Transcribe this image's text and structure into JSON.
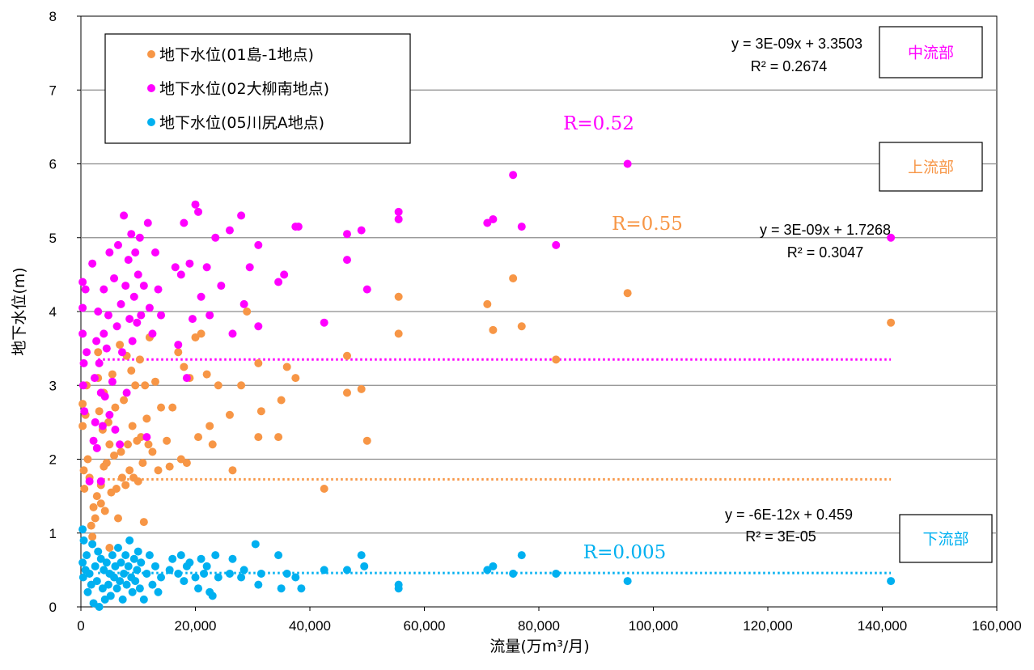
{
  "chart_data": {
    "type": "scatter",
    "xlabel": "流量(万m³/月)",
    "ylabel": "地下水位(m)",
    "xlim": [
      0,
      160000
    ],
    "ylim": [
      0,
      8
    ],
    "x_ticks": [
      "0",
      "20,000",
      "40,000",
      "60,000",
      "80,000",
      "100,000",
      "120,000",
      "140,000",
      "160,000"
    ],
    "y_ticks": [
      "0",
      "1",
      "2",
      "3",
      "4",
      "5",
      "6",
      "7",
      "8"
    ],
    "grid": "horizontal",
    "legend_position": "top-left",
    "series": [
      {
        "name": "地下水位(01島-1地点)",
        "color": "#F79646",
        "trendline": {
          "slope": 3e-09,
          "intercept": 1.7268,
          "equation": "y = 3E-09x + 1.7268",
          "r2": "R² = 0.3047",
          "r_label": "R=0.55",
          "region": "上流部"
        },
        "points": [
          [
            300,
            2.75
          ],
          [
            300,
            2.45
          ],
          [
            500,
            1.85
          ],
          [
            600,
            1.6
          ],
          [
            800,
            2.6
          ],
          [
            1000,
            3.0
          ],
          [
            1200,
            2.0
          ],
          [
            1500,
            1.75
          ],
          [
            1800,
            1.1
          ],
          [
            2000,
            0.95
          ],
          [
            2200,
            1.35
          ],
          [
            2500,
            1.2
          ],
          [
            2800,
            1.5
          ],
          [
            3000,
            3.45
          ],
          [
            3000,
            3.1
          ],
          [
            3200,
            2.65
          ],
          [
            3500,
            1.4
          ],
          [
            3500,
            1.65
          ],
          [
            3800,
            2.4
          ],
          [
            4000,
            2.9
          ],
          [
            4000,
            1.9
          ],
          [
            4200,
            1.3
          ],
          [
            4500,
            1.95
          ],
          [
            4800,
            2.5
          ],
          [
            5000,
            2.2
          ],
          [
            5000,
            0.8
          ],
          [
            5300,
            1.55
          ],
          [
            5500,
            3.15
          ],
          [
            5800,
            2.05
          ],
          [
            6000,
            2.7
          ],
          [
            6200,
            1.6
          ],
          [
            6500,
            1.2
          ],
          [
            6800,
            3.55
          ],
          [
            7000,
            2.1
          ],
          [
            7200,
            1.75
          ],
          [
            7500,
            2.8
          ],
          [
            7800,
            1.65
          ],
          [
            8000,
            3.4
          ],
          [
            8200,
            2.2
          ],
          [
            8500,
            1.85
          ],
          [
            8800,
            3.2
          ],
          [
            9000,
            2.45
          ],
          [
            9200,
            1.75
          ],
          [
            9500,
            3.0
          ],
          [
            9800,
            2.25
          ],
          [
            10000,
            1.7
          ],
          [
            10300,
            3.35
          ],
          [
            10500,
            2.3
          ],
          [
            10800,
            1.95
          ],
          [
            11000,
            1.15
          ],
          [
            11200,
            3.0
          ],
          [
            11500,
            2.55
          ],
          [
            11800,
            2.2
          ],
          [
            12000,
            3.65
          ],
          [
            12500,
            2.1
          ],
          [
            13000,
            3.05
          ],
          [
            13500,
            1.85
          ],
          [
            14000,
            2.7
          ],
          [
            15000,
            2.25
          ],
          [
            15500,
            1.9
          ],
          [
            16000,
            2.7
          ],
          [
            17000,
            3.45
          ],
          [
            17500,
            2.0
          ],
          [
            18000,
            3.25
          ],
          [
            18500,
            1.95
          ],
          [
            19000,
            3.1
          ],
          [
            20000,
            3.65
          ],
          [
            20500,
            2.3
          ],
          [
            21000,
            3.7
          ],
          [
            22000,
            3.15
          ],
          [
            22500,
            2.45
          ],
          [
            23000,
            2.2
          ],
          [
            24000,
            3.0
          ],
          [
            26000,
            2.6
          ],
          [
            26500,
            1.85
          ],
          [
            28000,
            3.0
          ],
          [
            29000,
            4.0
          ],
          [
            31000,
            2.3
          ],
          [
            31000,
            3.3
          ],
          [
            31500,
            2.65
          ],
          [
            34500,
            2.3
          ],
          [
            35000,
            2.8
          ],
          [
            36000,
            3.25
          ],
          [
            37500,
            3.1
          ],
          [
            42500,
            1.6
          ],
          [
            46500,
            2.9
          ],
          [
            46500,
            3.4
          ],
          [
            49000,
            2.95
          ],
          [
            50000,
            2.25
          ],
          [
            55500,
            4.2
          ],
          [
            55500,
            3.7
          ],
          [
            71000,
            4.1
          ],
          [
            72000,
            3.75
          ],
          [
            75500,
            4.45
          ],
          [
            77000,
            3.8
          ],
          [
            83000,
            3.35
          ],
          [
            95500,
            4.25
          ],
          [
            141500,
            3.85
          ]
        ]
      },
      {
        "name": "地下水位(02大柳南地点)",
        "color": "#FF00FF",
        "trendline": {
          "slope": 3e-09,
          "intercept": 3.3503,
          "equation": "y = 3E-09x + 3.3503",
          "r2": "R² = 0.2674",
          "r_label": "R=0.52",
          "region": "中流部"
        },
        "points": [
          [
            300,
            4.4
          ],
          [
            300,
            4.05
          ],
          [
            300,
            3.7
          ],
          [
            400,
            3.0
          ],
          [
            500,
            3.3
          ],
          [
            600,
            2.65
          ],
          [
            800,
            4.3
          ],
          [
            1000,
            3.45
          ],
          [
            1500,
            1.7
          ],
          [
            2000,
            4.65
          ],
          [
            2200,
            2.25
          ],
          [
            2400,
            3.1
          ],
          [
            2500,
            2.5
          ],
          [
            2700,
            3.6
          ],
          [
            2800,
            2.15
          ],
          [
            3000,
            4.0
          ],
          [
            3200,
            3.3
          ],
          [
            3500,
            2.9
          ],
          [
            3500,
            1.7
          ],
          [
            3800,
            2.45
          ],
          [
            4000,
            3.7
          ],
          [
            4000,
            4.3
          ],
          [
            4200,
            2.85
          ],
          [
            4500,
            3.5
          ],
          [
            4800,
            3.95
          ],
          [
            5000,
            4.8
          ],
          [
            5000,
            2.6
          ],
          [
            5500,
            3.05
          ],
          [
            5800,
            4.45
          ],
          [
            6000,
            2.4
          ],
          [
            6300,
            3.8
          ],
          [
            6500,
            4.9
          ],
          [
            6800,
            2.2
          ],
          [
            7000,
            4.1
          ],
          [
            7200,
            3.45
          ],
          [
            7500,
            5.3
          ],
          [
            7800,
            4.35
          ],
          [
            8000,
            2.9
          ],
          [
            8300,
            4.7
          ],
          [
            8500,
            3.9
          ],
          [
            8800,
            5.05
          ],
          [
            9000,
            3.6
          ],
          [
            9300,
            4.2
          ],
          [
            9500,
            4.8
          ],
          [
            9800,
            3.85
          ],
          [
            10000,
            4.5
          ],
          [
            10300,
            5.0
          ],
          [
            10500,
            3.95
          ],
          [
            11000,
            4.35
          ],
          [
            11500,
            2.3
          ],
          [
            11700,
            5.2
          ],
          [
            12000,
            4.05
          ],
          [
            12500,
            3.7
          ],
          [
            13000,
            4.8
          ],
          [
            13500,
            4.3
          ],
          [
            14000,
            3.95
          ],
          [
            16500,
            4.6
          ],
          [
            17000,
            3.55
          ],
          [
            17500,
            4.5
          ],
          [
            18000,
            5.2
          ],
          [
            18500,
            3.1
          ],
          [
            19000,
            4.65
          ],
          [
            19500,
            3.9
          ],
          [
            20000,
            5.45
          ],
          [
            20500,
            5.35
          ],
          [
            21000,
            4.2
          ],
          [
            22000,
            4.6
          ],
          [
            22500,
            3.95
          ],
          [
            23500,
            5.0
          ],
          [
            24500,
            4.35
          ],
          [
            26000,
            5.1
          ],
          [
            26500,
            3.7
          ],
          [
            28000,
            5.3
          ],
          [
            28500,
            4.1
          ],
          [
            29500,
            4.6
          ],
          [
            31000,
            4.9
          ],
          [
            31000,
            3.8
          ],
          [
            34500,
            4.4
          ],
          [
            35500,
            4.5
          ],
          [
            37500,
            5.15
          ],
          [
            38000,
            5.15
          ],
          [
            42500,
            3.85
          ],
          [
            46500,
            5.05
          ],
          [
            46500,
            4.7
          ],
          [
            49000,
            5.1
          ],
          [
            50000,
            4.3
          ],
          [
            55500,
            5.35
          ],
          [
            55500,
            5.25
          ],
          [
            71000,
            5.2
          ],
          [
            72000,
            5.25
          ],
          [
            75500,
            5.85
          ],
          [
            77000,
            5.15
          ],
          [
            83000,
            4.9
          ],
          [
            95500,
            6.0
          ],
          [
            141500,
            5.0
          ]
        ]
      },
      {
        "name": "地下水位(05川尻A地点)",
        "color": "#00B0F0",
        "trendline": {
          "slope": -6e-12,
          "intercept": 0.459,
          "equation": "y = -6E-12x + 0.459",
          "r2": "R² = 3E-05",
          "r_label": "R=0.005",
          "region": "下流部"
        },
        "points": [
          [
            300,
            1.05
          ],
          [
            300,
            0.6
          ],
          [
            400,
            0.4
          ],
          [
            500,
            0.9
          ],
          [
            800,
            0.5
          ],
          [
            1000,
            0.7
          ],
          [
            1200,
            0.2
          ],
          [
            1500,
            0.45
          ],
          [
            1800,
            0.3
          ],
          [
            2000,
            0.85
          ],
          [
            2200,
            0.05
          ],
          [
            2500,
            0.55
          ],
          [
            2800,
            0.35
          ],
          [
            3000,
            0.75
          ],
          [
            3200,
            0.0
          ],
          [
            3500,
            0.65
          ],
          [
            3800,
            0.25
          ],
          [
            4000,
            0.5
          ],
          [
            4200,
            0.1
          ],
          [
            4500,
            0.6
          ],
          [
            4800,
            0.3
          ],
          [
            5000,
            0.45
          ],
          [
            5200,
            0.15
          ],
          [
            5500,
            0.7
          ],
          [
            5800,
            0.4
          ],
          [
            6000,
            0.55
          ],
          [
            6300,
            0.25
          ],
          [
            6500,
            0.8
          ],
          [
            6800,
            0.35
          ],
          [
            7000,
            0.6
          ],
          [
            7300,
            0.1
          ],
          [
            7500,
            0.45
          ],
          [
            7800,
            0.7
          ],
          [
            8000,
            0.3
          ],
          [
            8300,
            0.55
          ],
          [
            8500,
            0.9
          ],
          [
            8800,
            0.4
          ],
          [
            9000,
            0.2
          ],
          [
            9300,
            0.65
          ],
          [
            9500,
            0.35
          ],
          [
            9800,
            0.5
          ],
          [
            10000,
            0.75
          ],
          [
            10300,
            0.25
          ],
          [
            10500,
            0.6
          ],
          [
            11000,
            0.1
          ],
          [
            11500,
            0.45
          ],
          [
            12000,
            0.7
          ],
          [
            12500,
            0.3
          ],
          [
            13000,
            0.55
          ],
          [
            13500,
            0.2
          ],
          [
            14000,
            0.4
          ],
          [
            15500,
            0.5
          ],
          [
            16000,
            0.65
          ],
          [
            17000,
            0.45
          ],
          [
            17500,
            0.7
          ],
          [
            18000,
            0.35
          ],
          [
            18500,
            0.55
          ],
          [
            19000,
            0.6
          ],
          [
            20000,
            0.4
          ],
          [
            20500,
            0.25
          ],
          [
            21000,
            0.65
          ],
          [
            21500,
            0.45
          ],
          [
            22000,
            0.55
          ],
          [
            22500,
            0.2
          ],
          [
            23000,
            0.15
          ],
          [
            23500,
            0.7
          ],
          [
            24000,
            0.4
          ],
          [
            26000,
            0.45
          ],
          [
            26500,
            0.65
          ],
          [
            28000,
            0.4
          ],
          [
            28500,
            0.5
          ],
          [
            30500,
            0.85
          ],
          [
            31000,
            0.3
          ],
          [
            31500,
            0.45
          ],
          [
            34500,
            0.7
          ],
          [
            35000,
            0.25
          ],
          [
            36000,
            0.45
          ],
          [
            37500,
            0.4
          ],
          [
            38500,
            0.25
          ],
          [
            42500,
            0.5
          ],
          [
            46500,
            0.5
          ],
          [
            49000,
            0.7
          ],
          [
            49500,
            0.55
          ],
          [
            55500,
            0.3
          ],
          [
            55500,
            0.25
          ],
          [
            71000,
            0.5
          ],
          [
            72000,
            0.55
          ],
          [
            75500,
            0.45
          ],
          [
            77000,
            0.7
          ],
          [
            83000,
            0.45
          ],
          [
            95500,
            0.35
          ],
          [
            141500,
            0.35
          ]
        ]
      }
    ]
  }
}
